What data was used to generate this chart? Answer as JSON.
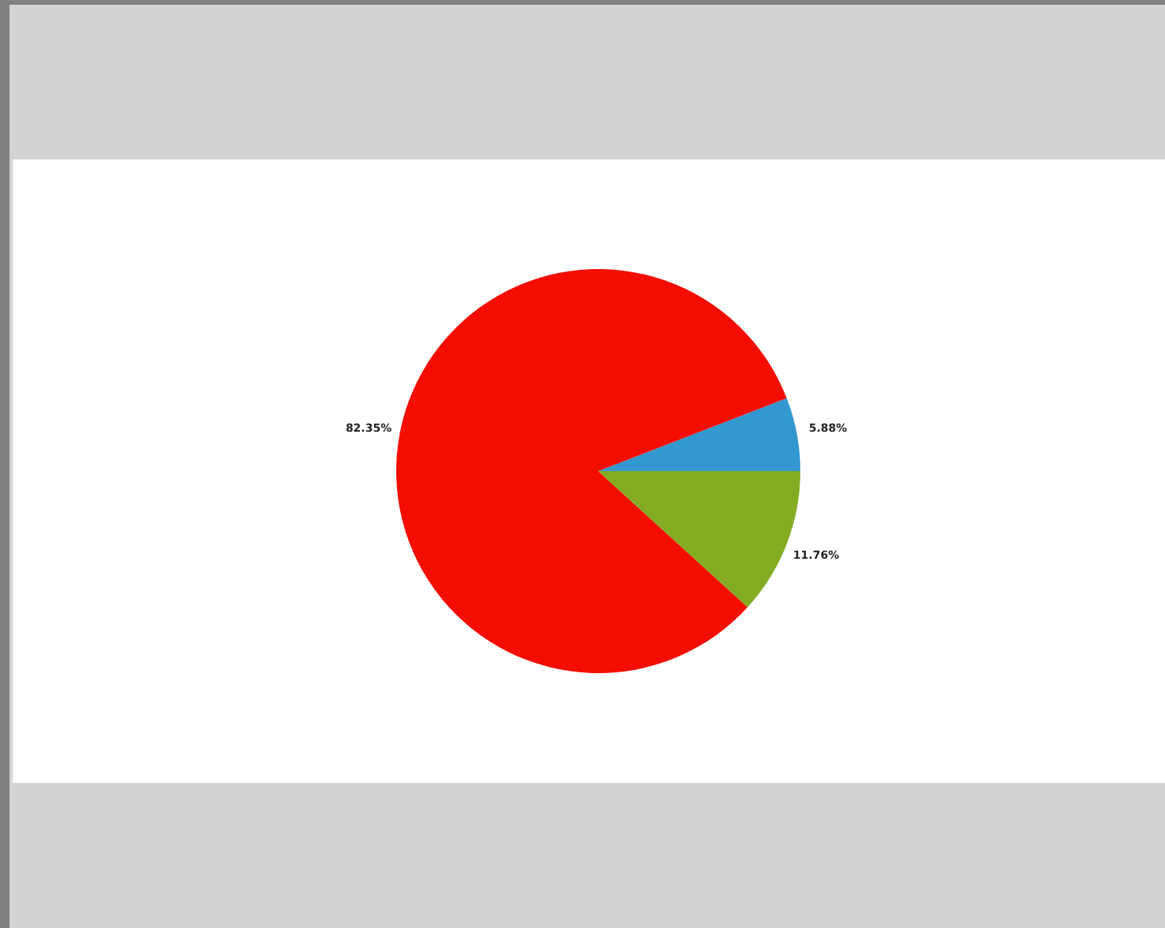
{
  "chart_data": {
    "type": "pie",
    "categories": [
      null,
      null,
      null
    ],
    "values": [
      5.88,
      82.35,
      11.76
    ],
    "colors": [
      "#3398d0",
      "#f40d00",
      "#84ac23"
    ],
    "value_labels": [
      "5.88%",
      "82.35%",
      "11.76%"
    ]
  }
}
